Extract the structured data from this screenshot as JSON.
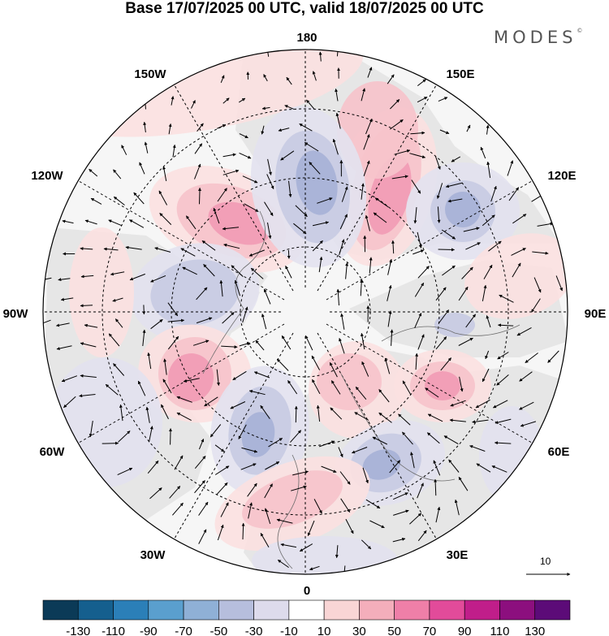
{
  "title": "Base 17/07/2025 00 UTC, valid 18/07/2025 00 UTC",
  "brand": {
    "name": "MODES",
    "mark": "©"
  },
  "longitude_labels": [
    "180",
    "150E",
    "120E",
    "90E",
    "60E",
    "30E",
    "0",
    "30W",
    "60W",
    "90W",
    "120W",
    "150W"
  ],
  "reference_vector": {
    "label": "10",
    "icon": "arrow-right-icon"
  },
  "projection": "north-polar-stereographic",
  "overlays": [
    "shaded anomaly field",
    "coastlines",
    "wind vectors",
    "dashed lat/lon graticule"
  ],
  "colorbar": {
    "tick_labels": [
      "-130",
      "-110",
      "-90",
      "-70",
      "-50",
      "-30",
      "-10",
      "10",
      "30",
      "50",
      "70",
      "90",
      "110",
      "130"
    ],
    "colors": [
      "#0b3a57",
      "#155f8e",
      "#2b7fb8",
      "#5a9fce",
      "#8fb0d6",
      "#b6bedd",
      "#dddbec",
      "#ffffff",
      "#f9d5d5",
      "#f4aebb",
      "#ef7fa8",
      "#e24b9a",
      "#c01e8a",
      "#8c0f7e",
      "#5c0b78"
    ]
  },
  "anomaly_field": {
    "colors": {
      "light_neg": "#e3e2ef",
      "neg1": "#c8cbe3",
      "neg2": "#a7b2d7",
      "neg3": "#7fa2cf",
      "light_pos": "#fbe1e1",
      "pos1": "#f6c3cb",
      "pos2": "#f19bb5",
      "pos3": "#e46aa3",
      "land": "#e6e6e6"
    }
  }
}
